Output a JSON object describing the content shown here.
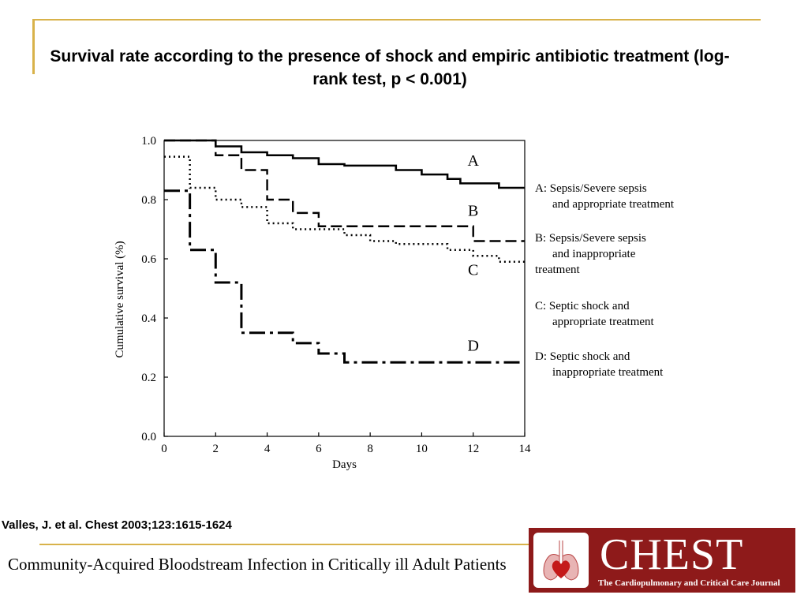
{
  "slide": {
    "title": "Survival rate according to the presence of shock and empiric antibiotic treatment (log-rank test, p < 0.001)",
    "citation": "Valles, J. et al. Chest 2003;123:1615-1624",
    "footer_title": "Community-Acquired Bloodstream Infection in Critically ill Adult Patients",
    "accent_color": "#d8b24a"
  },
  "logo": {
    "name": "CHEST",
    "subtitle": "The Cardiopulmonary and Critical Care Journal",
    "background_color": "#8e1a1a",
    "icon": "lungs-heart-icon"
  },
  "chart_data": {
    "type": "line",
    "step": true,
    "xlabel": "Days",
    "ylabel": "Cumulative survival   (%)",
    "xlim": [
      0,
      14
    ],
    "ylim": [
      0,
      1.0
    ],
    "x_ticks": [
      "0",
      "2",
      "4",
      "6",
      "8",
      "10",
      "12",
      "14"
    ],
    "y_ticks": [
      "0.0",
      "0.2",
      "0.4",
      "0.6",
      "0.8",
      "1.0"
    ],
    "grid": false,
    "series": [
      {
        "name": "A",
        "legend_lines": [
          "A: Sepsis/Severe sepsis",
          "and appropriate treatment"
        ],
        "style": "solid",
        "points": [
          [
            0,
            1.0
          ],
          [
            2,
            0.98
          ],
          [
            3,
            0.96
          ],
          [
            4,
            0.95
          ],
          [
            5,
            0.94
          ],
          [
            6,
            0.92
          ],
          [
            7,
            0.915
          ],
          [
            9,
            0.9
          ],
          [
            10,
            0.885
          ],
          [
            11,
            0.87
          ],
          [
            11.5,
            0.855
          ],
          [
            13,
            0.84
          ],
          [
            14,
            0.84
          ]
        ]
      },
      {
        "name": "B",
        "legend_lines": [
          "B: Sepsis/Severe sepsis",
          "and inappropriate",
          "treatment"
        ],
        "style": "dashed",
        "points": [
          [
            0,
            1.0
          ],
          [
            2,
            0.95
          ],
          [
            3,
            0.9
          ],
          [
            4,
            0.8
          ],
          [
            5,
            0.755
          ],
          [
            6,
            0.71
          ],
          [
            12,
            0.66
          ],
          [
            14,
            0.66
          ]
        ]
      },
      {
        "name": "C",
        "legend_lines": [
          "C: Septic shock and",
          "appropriate treatment"
        ],
        "style": "dotted",
        "points": [
          [
            0,
            0.945
          ],
          [
            1,
            0.84
          ],
          [
            2,
            0.8
          ],
          [
            3,
            0.775
          ],
          [
            4,
            0.72
          ],
          [
            5,
            0.7
          ],
          [
            7,
            0.68
          ],
          [
            8,
            0.66
          ],
          [
            9,
            0.65
          ],
          [
            11,
            0.63
          ],
          [
            12,
            0.61
          ],
          [
            13,
            0.59
          ],
          [
            14,
            0.59
          ]
        ]
      },
      {
        "name": "D",
        "legend_lines": [
          "D: Septic shock and",
          "inappropriate treatment"
        ],
        "style": "dashdot",
        "points": [
          [
            0,
            0.83
          ],
          [
            1,
            0.63
          ],
          [
            2,
            0.52
          ],
          [
            3,
            0.35
          ],
          [
            5,
            0.315
          ],
          [
            6,
            0.28
          ],
          [
            7,
            0.25
          ],
          [
            14,
            0.25
          ]
        ]
      }
    ],
    "curve_labels": [
      {
        "text": "A",
        "x": 12,
        "y": 0.915
      },
      {
        "text": "B",
        "x": 12,
        "y": 0.745
      },
      {
        "text": "C",
        "x": 12,
        "y": 0.545
      },
      {
        "text": "D",
        "x": 12,
        "y": 0.29
      }
    ]
  }
}
